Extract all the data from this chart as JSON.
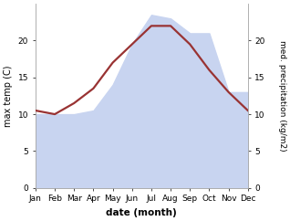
{
  "months": [
    "Jan",
    "Feb",
    "Mar",
    "Apr",
    "May",
    "Jun",
    "Jul",
    "Aug",
    "Sep",
    "Oct",
    "Nov",
    "Dec"
  ],
  "max_temp": [
    10.5,
    10.0,
    11.5,
    13.5,
    17.0,
    19.5,
    22.0,
    22.0,
    19.5,
    16.0,
    13.0,
    10.5
  ],
  "precipitation": [
    10.0,
    10.0,
    10.0,
    10.5,
    14.0,
    19.5,
    23.5,
    23.0,
    21.0,
    21.0,
    13.0,
    13.0
  ],
  "temp_color": "#993333",
  "area_color": "#c8d4f0",
  "area_edge_color": "#aab5e8",
  "ylabel_left": "max temp (C)",
  "ylabel_right": "med. precipitation (kg/m2)",
  "xlabel": "date (month)",
  "ylim_left": [
    0,
    25
  ],
  "ylim_right": [
    0,
    25
  ],
  "yticks_left": [
    0,
    5,
    10,
    15,
    20
  ],
  "yticks_right": [
    0,
    5,
    10,
    15,
    20
  ],
  "background_color": "#ffffff",
  "temp_linewidth": 1.6,
  "ylabel_left_fontsize": 7,
  "ylabel_right_fontsize": 6.5,
  "xlabel_fontsize": 7.5,
  "tick_labelsize": 6.5
}
